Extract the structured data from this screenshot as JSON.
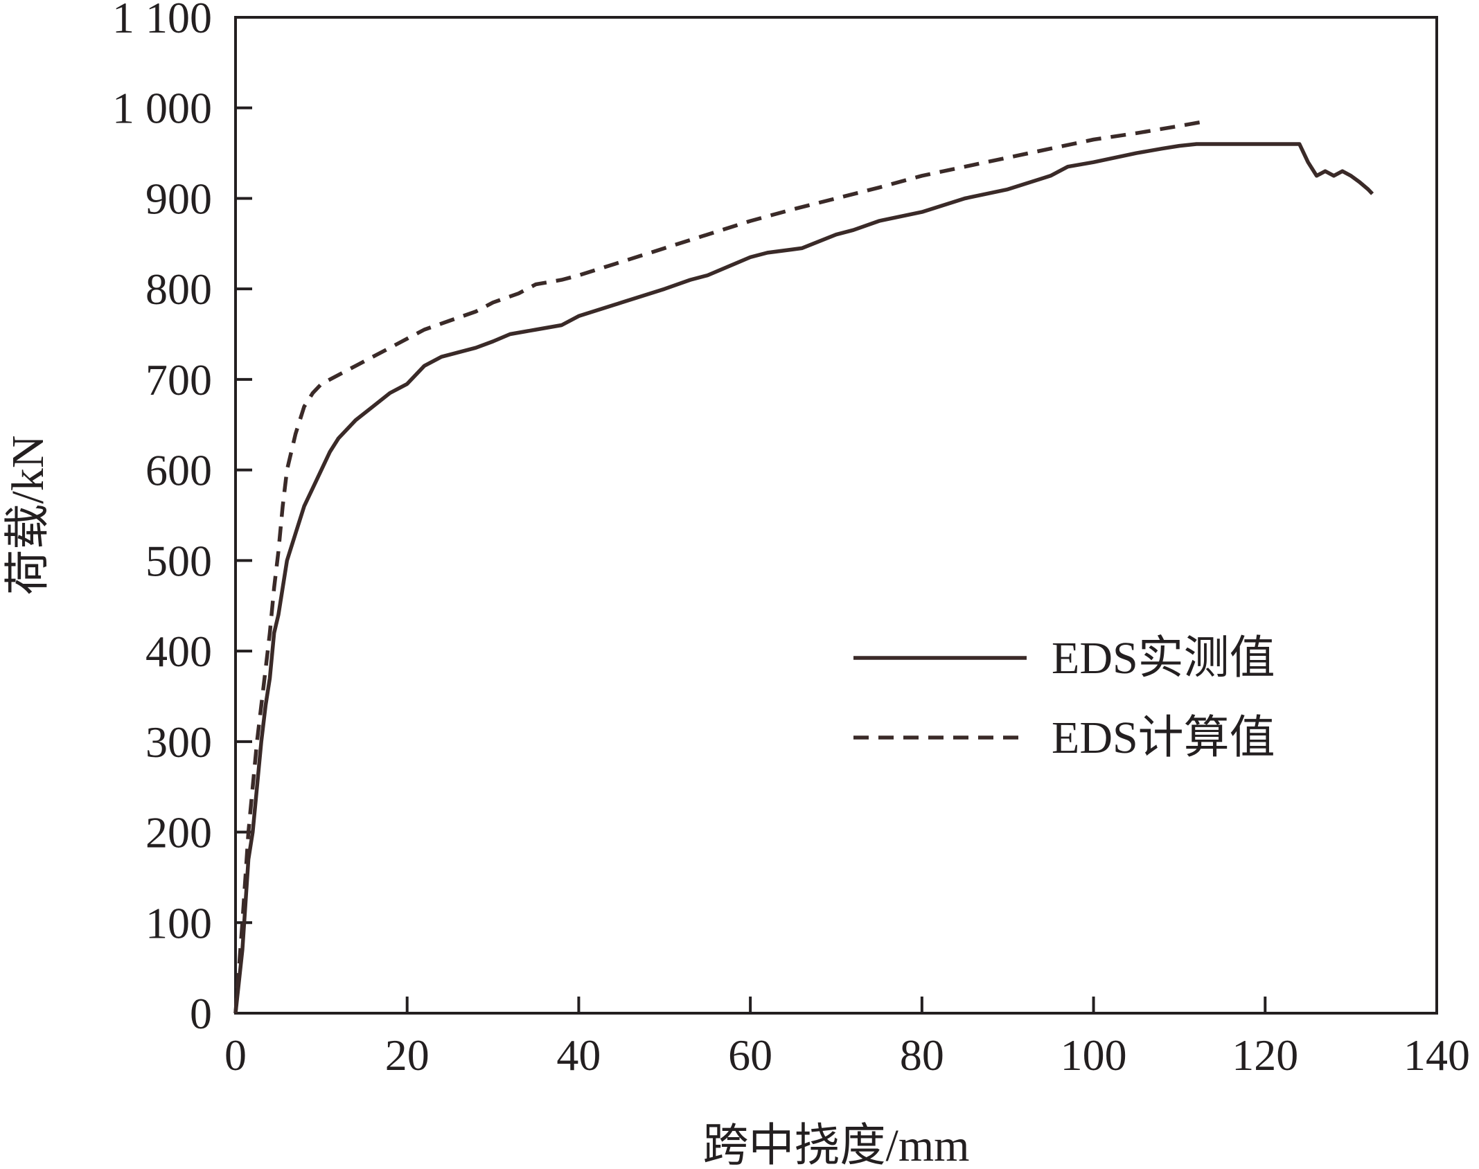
{
  "chart_data": {
    "type": "line",
    "title": "",
    "xlabel": "跨中挠度/mm",
    "ylabel": "荷载/kN",
    "xlim": [
      0,
      140
    ],
    "ylim": [
      0,
      1100
    ],
    "xticks": [
      0,
      20,
      40,
      60,
      80,
      100,
      120,
      140
    ],
    "yticks": [
      0,
      100,
      200,
      300,
      400,
      500,
      600,
      700,
      800,
      900,
      1000,
      1100
    ],
    "xtick_labels": [
      "0",
      "20",
      "40",
      "60",
      "80",
      "100",
      "120",
      "140"
    ],
    "ytick_labels": [
      "0",
      "100",
      "200",
      "300",
      "400",
      "500",
      "600",
      "700",
      "800",
      "900",
      "1 000",
      "1 100"
    ],
    "grid": false,
    "legend_position": "center-right",
    "series": [
      {
        "name": "EDS实测值",
        "style": "solid",
        "color": "#3a2a28",
        "x": [
          0,
          0.8,
          1.5,
          2,
          2.5,
          3,
          3.5,
          4,
          4.5,
          5,
          5.5,
          6,
          7,
          8,
          9,
          10,
          11,
          12,
          14,
          16,
          18,
          20,
          22,
          24,
          26,
          28,
          30,
          32,
          35,
          38,
          40,
          45,
          50,
          53,
          55,
          60,
          62,
          66,
          70,
          72,
          75,
          80,
          85,
          90,
          95,
          97,
          100,
          105,
          108,
          110,
          112,
          120,
          124,
          125,
          126,
          127,
          128,
          129,
          130,
          131,
          132,
          132.5
        ],
        "y": [
          0,
          70,
          170,
          200,
          250,
          300,
          340,
          370,
          420,
          440,
          470,
          500,
          530,
          560,
          580,
          600,
          620,
          635,
          655,
          670,
          685,
          695,
          715,
          725,
          730,
          735,
          742,
          750,
          755,
          760,
          770,
          785,
          800,
          810,
          815,
          835,
          840,
          845,
          860,
          865,
          875,
          885,
          900,
          910,
          925,
          935,
          940,
          950,
          955,
          958,
          960,
          960,
          960,
          940,
          925,
          930,
          925,
          930,
          925,
          918,
          910,
          905
        ]
      },
      {
        "name": "EDS计算值",
        "style": "dashed",
        "color": "#3a2a28",
        "x": [
          0,
          0.8,
          1.5,
          2,
          2.5,
          3,
          3.5,
          4,
          4.5,
          5,
          5.5,
          6,
          7,
          8,
          9,
          10,
          12,
          14,
          16,
          18,
          20,
          22,
          25,
          28,
          30,
          33,
          35,
          38,
          40,
          45,
          50,
          55,
          60,
          65,
          70,
          75,
          80,
          85,
          90,
          95,
          100,
          105,
          110,
          113
        ],
        "y": [
          0,
          100,
          200,
          250,
          300,
          340,
          380,
          420,
          470,
          510,
          560,
          600,
          640,
          670,
          685,
          695,
          705,
          715,
          725,
          735,
          745,
          755,
          765,
          775,
          785,
          795,
          805,
          810,
          815,
          830,
          845,
          860,
          875,
          888,
          900,
          912,
          925,
          935,
          945,
          955,
          965,
          972,
          980,
          985
        ]
      }
    ]
  },
  "legend": {
    "items": [
      {
        "label": "EDS实测值"
      },
      {
        "label": "EDS计算值"
      }
    ]
  }
}
